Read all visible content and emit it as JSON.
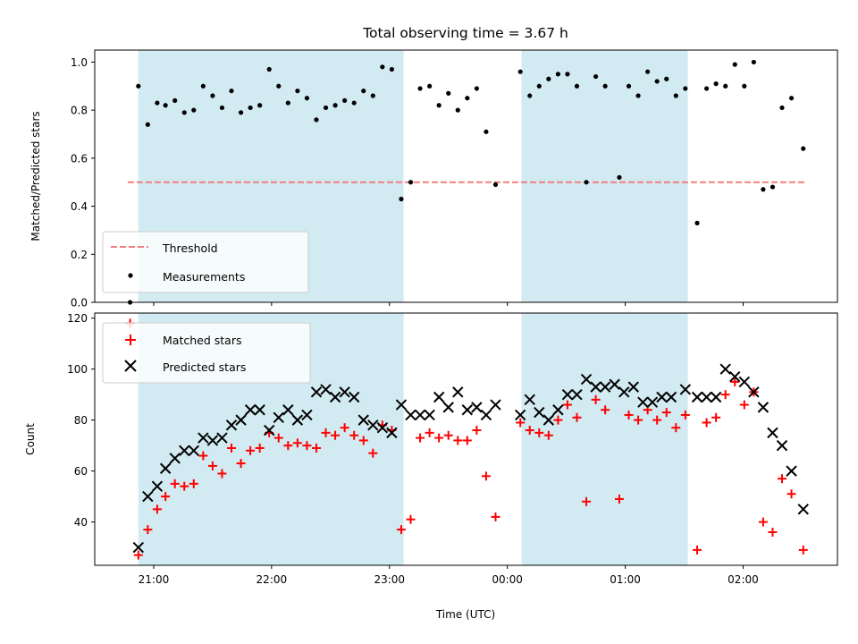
{
  "chart_data": {
    "type": "scatter",
    "title": "Total observing time = 3.67 h",
    "xlabel": "Time (UTC)",
    "x_unit": "hours after 00:00 UTC",
    "xlim": [
      -3.5,
      2.8
    ],
    "x_ticks": [
      {
        "x": -3,
        "label": "21:00"
      },
      {
        "x": -2,
        "label": "22:00"
      },
      {
        "x": -1,
        "label": "23:00"
      },
      {
        "x": 0,
        "label": "00:00"
      },
      {
        "x": 1,
        "label": "01:00"
      },
      {
        "x": 2,
        "label": "02:00"
      }
    ],
    "shaded_intervals": [
      [
        -3.13,
        -0.88
      ],
      [
        0.12,
        1.53
      ]
    ],
    "shade_color": "#add8e6",
    "panels": [
      {
        "ylabel": "Matched/Predicted stars",
        "ylim": [
          0,
          1.05
        ],
        "yticks": [
          "0.0",
          "0.2",
          "0.4",
          "0.6",
          "0.8",
          "1.0"
        ],
        "threshold": {
          "name": "Threshold",
          "value": 0.5,
          "x_range": [
            -3.22,
            2.52
          ],
          "color": "#f08080"
        },
        "series": [
          {
            "name": "Measurements",
            "marker": "dot",
            "color": "#000000",
            "points": [
              [
                -3.2,
                0.0
              ],
              [
                -3.13,
                0.9
              ],
              [
                -3.05,
                0.74
              ],
              [
                -2.97,
                0.83
              ],
              [
                -2.9,
                0.82
              ],
              [
                -2.82,
                0.84
              ],
              [
                -2.74,
                0.79
              ],
              [
                -2.66,
                0.8
              ],
              [
                -2.58,
                0.9
              ],
              [
                -2.5,
                0.86
              ],
              [
                -2.42,
                0.81
              ],
              [
                -2.34,
                0.88
              ],
              [
                -2.26,
                0.79
              ],
              [
                -2.18,
                0.81
              ],
              [
                -2.1,
                0.82
              ],
              [
                -2.02,
                0.97
              ],
              [
                -1.94,
                0.9
              ],
              [
                -1.86,
                0.83
              ],
              [
                -1.78,
                0.88
              ],
              [
                -1.7,
                0.85
              ],
              [
                -1.62,
                0.76
              ],
              [
                -1.54,
                0.81
              ],
              [
                -1.46,
                0.82
              ],
              [
                -1.38,
                0.84
              ],
              [
                -1.3,
                0.83
              ],
              [
                -1.22,
                0.88
              ],
              [
                -1.14,
                0.86
              ],
              [
                -1.06,
                0.98
              ],
              [
                -0.98,
                0.97
              ],
              [
                -0.9,
                0.43
              ],
              [
                -0.82,
                0.5
              ],
              [
                -0.74,
                0.89
              ],
              [
                -0.66,
                0.9
              ],
              [
                -0.58,
                0.82
              ],
              [
                -0.5,
                0.87
              ],
              [
                -0.42,
                0.8
              ],
              [
                -0.34,
                0.85
              ],
              [
                -0.26,
                0.89
              ],
              [
                -0.18,
                0.71
              ],
              [
                -0.1,
                0.49
              ],
              [
                0.11,
                0.96
              ],
              [
                0.19,
                0.86
              ],
              [
                0.27,
                0.9
              ],
              [
                0.35,
                0.93
              ],
              [
                0.43,
                0.95
              ],
              [
                0.51,
                0.95
              ],
              [
                0.59,
                0.9
              ],
              [
                0.67,
                0.5
              ],
              [
                0.75,
                0.94
              ],
              [
                0.83,
                0.9
              ],
              [
                0.95,
                0.52
              ],
              [
                1.03,
                0.9
              ],
              [
                1.11,
                0.86
              ],
              [
                1.19,
                0.96
              ],
              [
                1.27,
                0.92
              ],
              [
                1.35,
                0.93
              ],
              [
                1.43,
                0.86
              ],
              [
                1.51,
                0.89
              ],
              [
                1.61,
                0.33
              ],
              [
                1.69,
                0.89
              ],
              [
                1.77,
                0.91
              ],
              [
                1.85,
                0.9
              ],
              [
                1.93,
                0.99
              ],
              [
                2.01,
                0.9
              ],
              [
                2.09,
                1.0
              ],
              [
                2.17,
                0.47
              ],
              [
                2.25,
                0.48
              ],
              [
                2.33,
                0.81
              ],
              [
                2.41,
                0.85
              ],
              [
                2.51,
                0.64
              ]
            ]
          }
        ],
        "legend_position": "lower left"
      },
      {
        "ylabel": "Count",
        "ylim": [
          23,
          122
        ],
        "yticks": [
          "40",
          "60",
          "80",
          "100",
          "120"
        ],
        "series": [
          {
            "name": "Matched stars",
            "marker": "plus",
            "color": "#ff0000",
            "points": [
              [
                -3.2,
                118
              ],
              [
                -3.13,
                27
              ],
              [
                -3.05,
                37
              ],
              [
                -2.97,
                45
              ],
              [
                -2.9,
                50
              ],
              [
                -2.82,
                55
              ],
              [
                -2.74,
                54
              ],
              [
                -2.66,
                55
              ],
              [
                -2.58,
                66
              ],
              [
                -2.5,
                62
              ],
              [
                -2.42,
                59
              ],
              [
                -2.34,
                69
              ],
              [
                -2.26,
                63
              ],
              [
                -2.18,
                68
              ],
              [
                -2.1,
                69
              ],
              [
                -2.02,
                75
              ],
              [
                -1.94,
                73
              ],
              [
                -1.86,
                70
              ],
              [
                -1.78,
                71
              ],
              [
                -1.7,
                70
              ],
              [
                -1.62,
                69
              ],
              [
                -1.54,
                75
              ],
              [
                -1.46,
                74
              ],
              [
                -1.38,
                77
              ],
              [
                -1.3,
                74
              ],
              [
                -1.22,
                72
              ],
              [
                -1.14,
                67
              ],
              [
                -1.06,
                78
              ],
              [
                -0.98,
                76
              ],
              [
                -0.9,
                37
              ],
              [
                -0.82,
                41
              ],
              [
                -0.74,
                73
              ],
              [
                -0.66,
                75
              ],
              [
                -0.58,
                73
              ],
              [
                -0.5,
                74
              ],
              [
                -0.42,
                72
              ],
              [
                -0.34,
                72
              ],
              [
                -0.26,
                76
              ],
              [
                -0.18,
                58
              ],
              [
                -0.1,
                42
              ],
              [
                0.11,
                79
              ],
              [
                0.19,
                76
              ],
              [
                0.27,
                75
              ],
              [
                0.35,
                74
              ],
              [
                0.43,
                80
              ],
              [
                0.51,
                86
              ],
              [
                0.59,
                81
              ],
              [
                0.67,
                48
              ],
              [
                0.75,
                88
              ],
              [
                0.83,
                84
              ],
              [
                0.95,
                49
              ],
              [
                1.03,
                82
              ],
              [
                1.11,
                80
              ],
              [
                1.19,
                84
              ],
              [
                1.27,
                80
              ],
              [
                1.35,
                83
              ],
              [
                1.43,
                77
              ],
              [
                1.51,
                82
              ],
              [
                1.61,
                29
              ],
              [
                1.69,
                79
              ],
              [
                1.77,
                81
              ],
              [
                1.85,
                90
              ],
              [
                1.93,
                95
              ],
              [
                2.01,
                86
              ],
              [
                2.09,
                91
              ],
              [
                2.17,
                40
              ],
              [
                2.25,
                36
              ],
              [
                2.33,
                57
              ],
              [
                2.41,
                51
              ],
              [
                2.51,
                29
              ]
            ]
          },
          {
            "name": "Predicted stars",
            "marker": "x",
            "color": "#000000",
            "points": [
              [
                -3.13,
                30
              ],
              [
                -3.05,
                50
              ],
              [
                -2.97,
                54
              ],
              [
                -2.9,
                61
              ],
              [
                -2.82,
                65
              ],
              [
                -2.74,
                68
              ],
              [
                -2.66,
                68
              ],
              [
                -2.58,
                73
              ],
              [
                -2.5,
                72
              ],
              [
                -2.42,
                73
              ],
              [
                -2.34,
                78
              ],
              [
                -2.26,
                80
              ],
              [
                -2.18,
                84
              ],
              [
                -2.1,
                84
              ],
              [
                -2.02,
                76
              ],
              [
                -1.94,
                81
              ],
              [
                -1.86,
                84
              ],
              [
                -1.78,
                80
              ],
              [
                -1.7,
                82
              ],
              [
                -1.62,
                91
              ],
              [
                -1.54,
                92
              ],
              [
                -1.46,
                89
              ],
              [
                -1.38,
                91
              ],
              [
                -1.3,
                89
              ],
              [
                -1.22,
                80
              ],
              [
                -1.14,
                78
              ],
              [
                -1.06,
                77
              ],
              [
                -0.98,
                75
              ],
              [
                -0.9,
                86
              ],
              [
                -0.82,
                82
              ],
              [
                -0.74,
                82
              ],
              [
                -0.66,
                82
              ],
              [
                -0.58,
                89
              ],
              [
                -0.5,
                85
              ],
              [
                -0.42,
                91
              ],
              [
                -0.34,
                84
              ],
              [
                -0.26,
                85
              ],
              [
                -0.18,
                82
              ],
              [
                -0.1,
                86
              ],
              [
                0.11,
                82
              ],
              [
                0.19,
                88
              ],
              [
                0.27,
                83
              ],
              [
                0.35,
                80
              ],
              [
                0.43,
                84
              ],
              [
                0.51,
                90
              ],
              [
                0.59,
                90
              ],
              [
                0.67,
                96
              ],
              [
                0.75,
                93
              ],
              [
                0.83,
                93
              ],
              [
                0.91,
                94
              ],
              [
                0.99,
                91
              ],
              [
                1.07,
                93
              ],
              [
                1.15,
                87
              ],
              [
                1.23,
                87
              ],
              [
                1.31,
                89
              ],
              [
                1.39,
                89
              ],
              [
                1.51,
                92
              ],
              [
                1.61,
                89
              ],
              [
                1.69,
                89
              ],
              [
                1.77,
                89
              ],
              [
                1.85,
                100
              ],
              [
                1.93,
                97
              ],
              [
                2.01,
                95
              ],
              [
                2.09,
                91
              ],
              [
                2.17,
                85
              ],
              [
                2.25,
                75
              ],
              [
                2.33,
                70
              ],
              [
                2.41,
                60
              ],
              [
                2.51,
                45
              ]
            ]
          }
        ],
        "legend_position": "upper left"
      }
    ]
  }
}
